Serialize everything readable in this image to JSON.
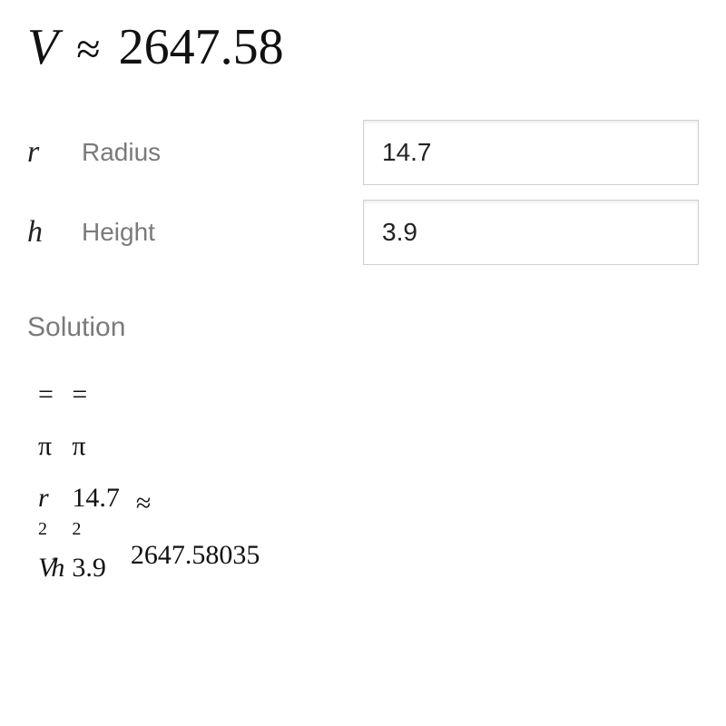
{
  "result": {
    "symbol": "V",
    "approx": "≈",
    "value": "2647.58"
  },
  "inputs": {
    "radius": {
      "symbol": "r",
      "label": "Radius",
      "value": "14.7"
    },
    "height": {
      "symbol": "h",
      "label": "Height",
      "value": "3.9"
    }
  },
  "solution": {
    "label": "Solution",
    "col1": {
      "eq": "=",
      "pi": "π",
      "r": "r",
      "exp": "2",
      "vh": "Vh"
    },
    "col2": {
      "eq": "=",
      "pi": "π",
      "r_val": "14.7",
      "exp": "2",
      "h_val": "3.9"
    },
    "col3": {
      "approx": "≈",
      "result": "2647.58035"
    }
  },
  "style": {
    "text_color": "#111111",
    "label_color": "#7a7a7a",
    "input_border": "#d0d0d0",
    "background": "#ffffff",
    "serif_font": "Georgia",
    "sans_font": "Helvetica",
    "result_fontsize_pt": 42,
    "input_fontsize_pt": 21,
    "label_fontsize_pt": 21,
    "solution_fontsize_pt": 23
  }
}
